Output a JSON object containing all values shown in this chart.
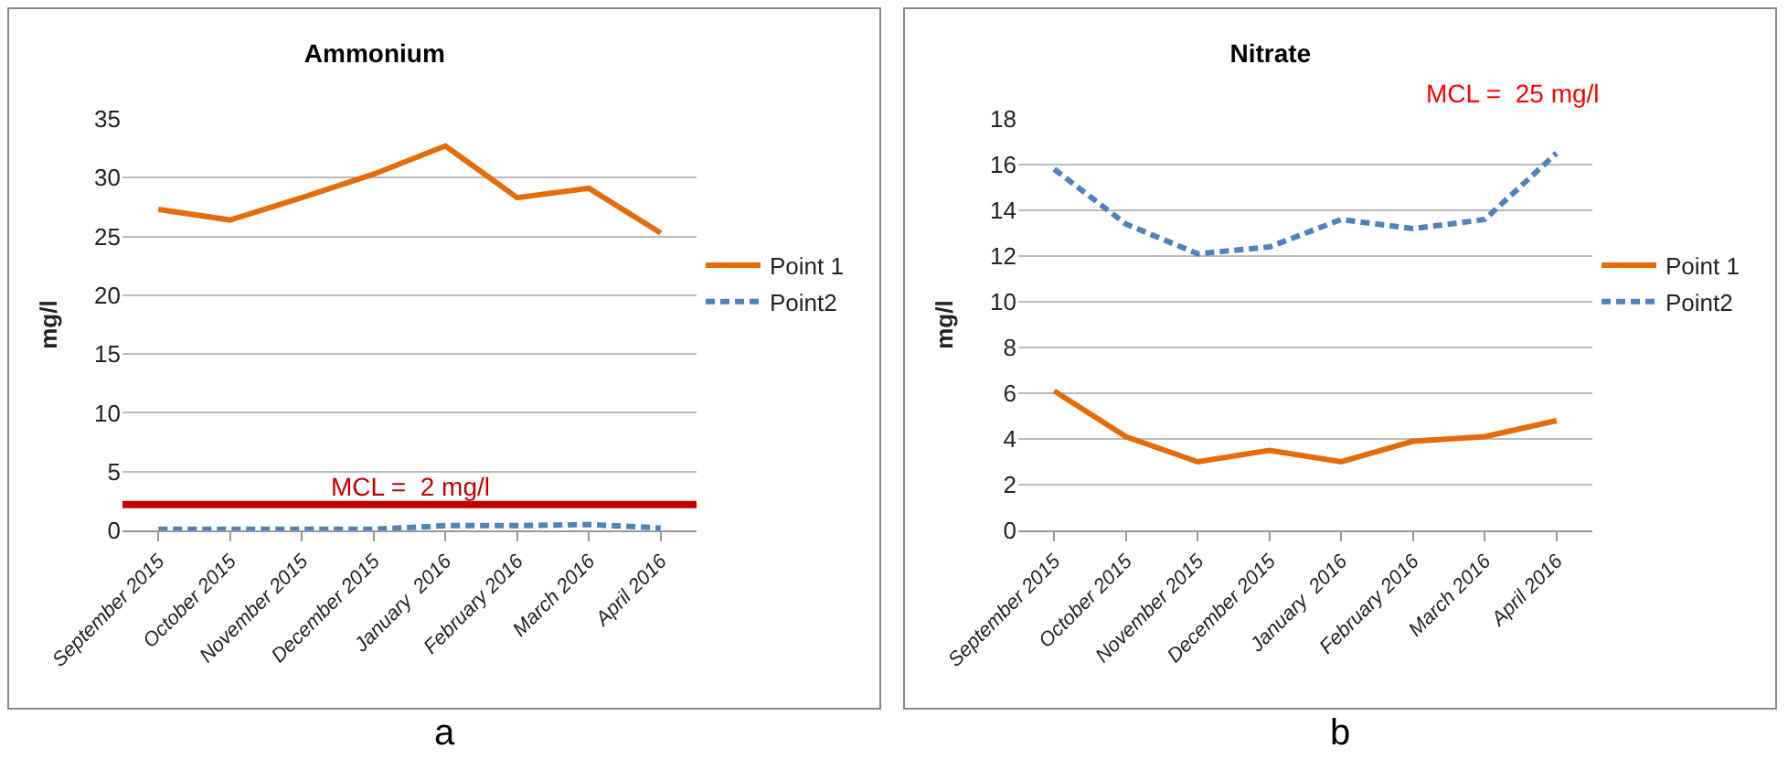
{
  "chart_data": [
    {
      "type": "line",
      "title": "Ammonium",
      "ylabel": "mg/l",
      "categories": [
        "September 2015",
        "October 2015",
        "November 2015",
        "December 2015",
        "January  2016",
        "February 2016",
        "March 2016",
        "April 2016"
      ],
      "series": [
        {
          "name": "Point 1",
          "color": "#e46c0a",
          "line_style": "solid",
          "values": [
            27.3,
            26.4,
            28.3,
            30.3,
            32.7,
            28.3,
            29.1,
            25.3
          ]
        },
        {
          "name": "Point2",
          "color": "#4f81bd",
          "line_style": "dashed",
          "values": [
            0.1,
            0.1,
            0.1,
            0.1,
            0.4,
            0.4,
            0.5,
            0.2
          ]
        }
      ],
      "ylim": [
        0,
        35
      ],
      "yticks": [
        0,
        5,
        10,
        15,
        20,
        25,
        30,
        35
      ],
      "grid": "y",
      "legend": "right",
      "marker": "none",
      "ref_lines": [
        {
          "axis": "y",
          "value": 2.2,
          "label": "MCL =  2 mg/l",
          "color": "#c00000"
        }
      ],
      "annotations": [
        "a"
      ]
    },
    {
      "type": "line",
      "title": "Nitrate",
      "ylabel": "mg/l",
      "categories": [
        "September 2015",
        "October 2015",
        "November 2015",
        "December 2015",
        "January  2016",
        "February 2016",
        "March 2016",
        "April 2016"
      ],
      "series": [
        {
          "name": "Point 1",
          "color": "#e46c0a",
          "line_style": "solid",
          "values": [
            6.1,
            4.1,
            3.0,
            3.5,
            3.0,
            3.9,
            4.1,
            4.8
          ]
        },
        {
          "name": "Point2",
          "color": "#4f81bd",
          "line_style": "dashed",
          "values": [
            15.8,
            13.4,
            12.1,
            12.4,
            13.6,
            13.2,
            13.6,
            16.5
          ]
        }
      ],
      "ylim": [
        0,
        18
      ],
      "yticks": [
        0,
        2,
        4,
        6,
        8,
        10,
        12,
        14,
        16,
        18
      ],
      "grid": "y",
      "legend": "right",
      "marker": "none",
      "annotations": [
        "MCL =  25 mg/l",
        "b"
      ]
    }
  ]
}
